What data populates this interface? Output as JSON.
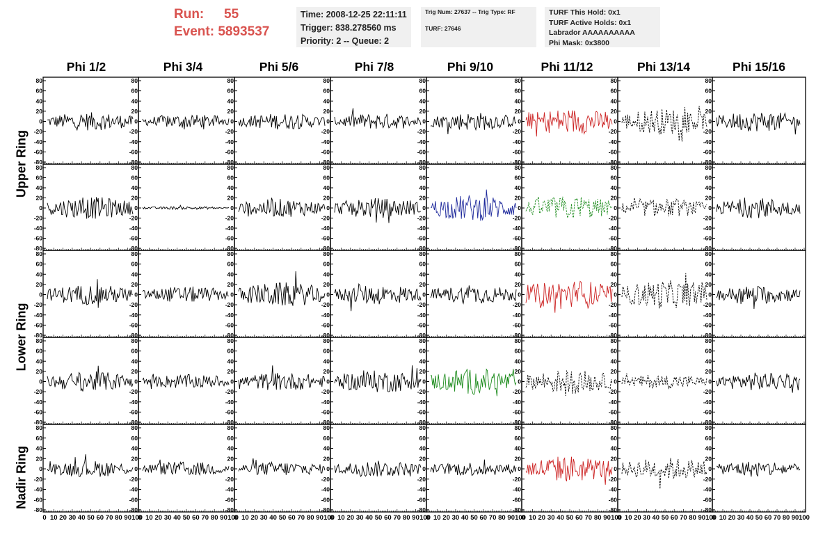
{
  "run_label": "Run:",
  "run_value": "55",
  "event_label": "Event:",
  "event_value": "5893537",
  "time_text": "Time: 2008-12-25 22:11:11",
  "trigger_text": "Trigger: 838.278560 ms",
  "priority_text": "Priority: 2 -- Queue: 2",
  "trig_num_text": "Trig Num: 27637 -- Trig Type: RF",
  "turf_text": "TURF: 27646",
  "turf_this_hold": "TURF This Hold: 0x1",
  "turf_active_holds": "TURF Active Holds: 0x1",
  "labrador": "Labrador AAAAAAAAAA",
  "phi_mask": "Phi Mask: 0x3800",
  "colors": {
    "black": "#000000",
    "red": "#cc2222",
    "blue": "#1f2a9c",
    "green": "#1a8a1a"
  },
  "chart_data": {
    "type": "line",
    "columns": [
      "Phi 1/2",
      "Phi 3/4",
      "Phi 5/6",
      "Phi 7/8",
      "Phi 9/10",
      "Phi 11/12",
      "Phi 13/14",
      "Phi 15/16"
    ],
    "row_labels": [
      "Upper Ring",
      "Lower Ring",
      "Nadir Ring"
    ],
    "ylim": [
      -80,
      80
    ],
    "y_ticks": [
      "80",
      "60",
      "40",
      "20",
      "0",
      "-20",
      "-40",
      "-60",
      "-80"
    ],
    "xlim": [
      0,
      100
    ],
    "x_tick_labels": [
      "0",
      "10",
      "20",
      "30",
      "40",
      "50",
      "60",
      "70",
      "80",
      "90",
      "100"
    ],
    "waveform_points": 90,
    "panels": [
      [
        {
          "color": "black",
          "amp": 18,
          "style": "solid"
        },
        {
          "color": "black",
          "amp": 14,
          "style": "solid"
        },
        {
          "color": "black",
          "amp": 16,
          "style": "solid"
        },
        {
          "color": "black",
          "amp": 16,
          "style": "solid"
        },
        {
          "color": "black",
          "amp": 18,
          "style": "solid"
        },
        {
          "color": "red",
          "amp": 26,
          "style": "solid"
        },
        {
          "color": "black",
          "amp": 26,
          "style": "dashed"
        },
        {
          "color": "black",
          "amp": 20,
          "style": "solid"
        }
      ],
      [
        {
          "color": "black",
          "amp": 22,
          "style": "solid"
        },
        {
          "color": "black",
          "amp": 3,
          "style": "solid"
        },
        {
          "color": "black",
          "amp": 18,
          "style": "solid"
        },
        {
          "color": "black",
          "amp": 20,
          "style": "solid"
        },
        {
          "color": "blue",
          "amp": 26,
          "style": "solid"
        },
        {
          "color": "green",
          "amp": 24,
          "style": "dashed"
        },
        {
          "color": "black",
          "amp": 18,
          "style": "dashed"
        },
        {
          "color": "black",
          "amp": 20,
          "style": "solid"
        }
      ],
      [
        {
          "color": "black",
          "amp": 20,
          "style": "solid"
        },
        {
          "color": "black",
          "amp": 16,
          "style": "solid"
        },
        {
          "color": "black",
          "amp": 24,
          "style": "solid"
        },
        {
          "color": "black",
          "amp": 20,
          "style": "solid"
        },
        {
          "color": "black",
          "amp": 18,
          "style": "solid"
        },
        {
          "color": "red",
          "amp": 30,
          "style": "solid"
        },
        {
          "color": "black",
          "amp": 28,
          "style": "dashed"
        },
        {
          "color": "black",
          "amp": 18,
          "style": "solid"
        }
      ],
      [
        {
          "color": "black",
          "amp": 20,
          "style": "solid"
        },
        {
          "color": "black",
          "amp": 14,
          "style": "solid"
        },
        {
          "color": "black",
          "amp": 18,
          "style": "solid"
        },
        {
          "color": "black",
          "amp": 22,
          "style": "solid"
        },
        {
          "color": "green",
          "amp": 26,
          "style": "solid"
        },
        {
          "color": "black",
          "amp": 24,
          "style": "dashed"
        },
        {
          "color": "black",
          "amp": 14,
          "style": "dashed"
        },
        {
          "color": "black",
          "amp": 18,
          "style": "solid"
        }
      ],
      [
        {
          "color": "black",
          "amp": 16,
          "style": "solid"
        },
        {
          "color": "black",
          "amp": 14,
          "style": "solid"
        },
        {
          "color": "black",
          "amp": 14,
          "style": "solid"
        },
        {
          "color": "black",
          "amp": 16,
          "style": "solid"
        },
        {
          "color": "black",
          "amp": 14,
          "style": "solid"
        },
        {
          "color": "red",
          "amp": 26,
          "style": "solid"
        },
        {
          "color": "black",
          "amp": 22,
          "style": "dashed"
        },
        {
          "color": "black",
          "amp": 16,
          "style": "solid"
        }
      ]
    ]
  }
}
